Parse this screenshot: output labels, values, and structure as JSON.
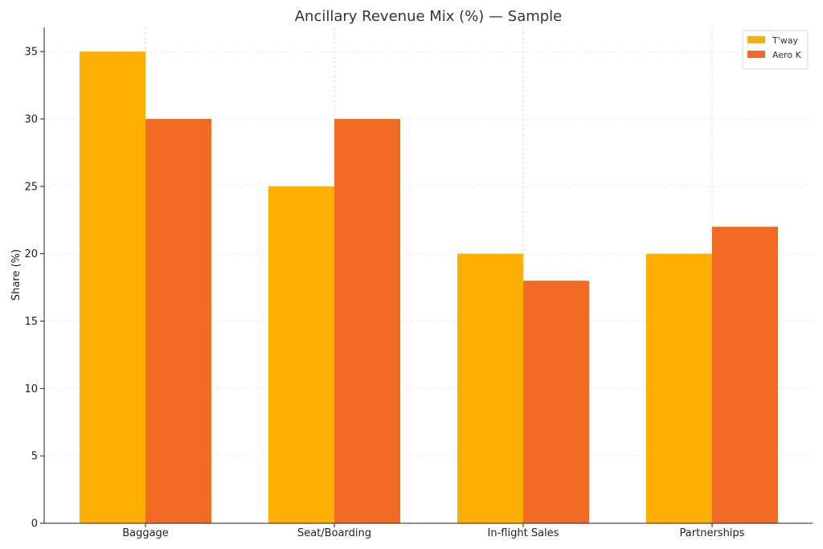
{
  "chart_data": {
    "type": "bar",
    "title": "Ancillary Revenue Mix (%) — Sample",
    "xlabel": "",
    "ylabel": "Share (%)",
    "categories": [
      "Baggage",
      "Seat/Boarding",
      "In-flight Sales",
      "Partnerships"
    ],
    "series": [
      {
        "name": "T'way",
        "values": [
          35,
          25,
          20,
          20
        ],
        "color": "#fdb003"
      },
      {
        "name": "Aero K",
        "values": [
          30,
          30,
          18,
          22
        ],
        "color": "#f26b24"
      }
    ],
    "ylim": [
      0,
      36.8
    ],
    "yticks": [
      0,
      5,
      10,
      15,
      20,
      25,
      30,
      35
    ],
    "grid": true,
    "legend_position": "top-right"
  }
}
